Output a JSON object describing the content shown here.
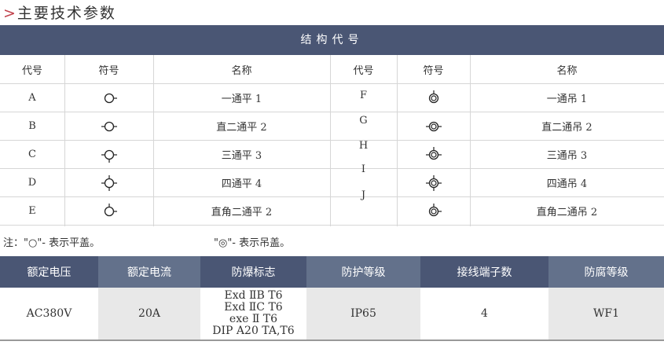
{
  "title": {
    "arrow": ">",
    "text": "主要技术参数"
  },
  "structure": {
    "header": "结构代号",
    "columns": [
      "代号",
      "符号",
      "名称",
      "代号",
      "符号",
      "名称"
    ],
    "left_rows": [
      {
        "code": "A",
        "name": "一通平 1",
        "stubs": "r"
      },
      {
        "code": "B",
        "name": "直二通平 2",
        "stubs": "lr"
      },
      {
        "code": "C",
        "name": "三通平 3",
        "stubs": "lrb"
      },
      {
        "code": "D",
        "name": "四通平 4",
        "stubs": "lrtb"
      },
      {
        "code": "E",
        "name": "直角二通平 2",
        "stubs": "tr"
      }
    ],
    "right_rows": [
      {
        "code": "F",
        "name": "一通吊 1",
        "stubs": "t"
      },
      {
        "code": "G",
        "name": "直二通吊 2",
        "stubs": "lr"
      },
      {
        "code": "H",
        "name": "三通吊 3",
        "stubs": "lrt"
      },
      {
        "code": "I",
        "name": "四通吊 4",
        "stubs": "lrtb"
      },
      {
        "code": "J",
        "name": "直角二通吊 2",
        "stubs": "tr"
      }
    ]
  },
  "notes": {
    "flat": "注：\"○\"- 表示平盖。",
    "hanging": "\"◎\"- 表示吊盖。"
  },
  "specs": {
    "headers": [
      "额定电压",
      "额定电流",
      "防爆标志",
      "防护等级",
      "接线端子数",
      "防腐等级"
    ],
    "values": [
      "AC380V",
      "20A",
      "Exd ⅡB T6\nExd ⅡC T6\nexe Ⅱ T6\nDIP A20 TA,T6",
      "IP65",
      "4",
      "WF1"
    ]
  },
  "colors": {
    "header_dark": "#4a5674",
    "header_light": "#63718b",
    "cell_gray": "#e8e8e8",
    "arrow": "#c0404a"
  }
}
